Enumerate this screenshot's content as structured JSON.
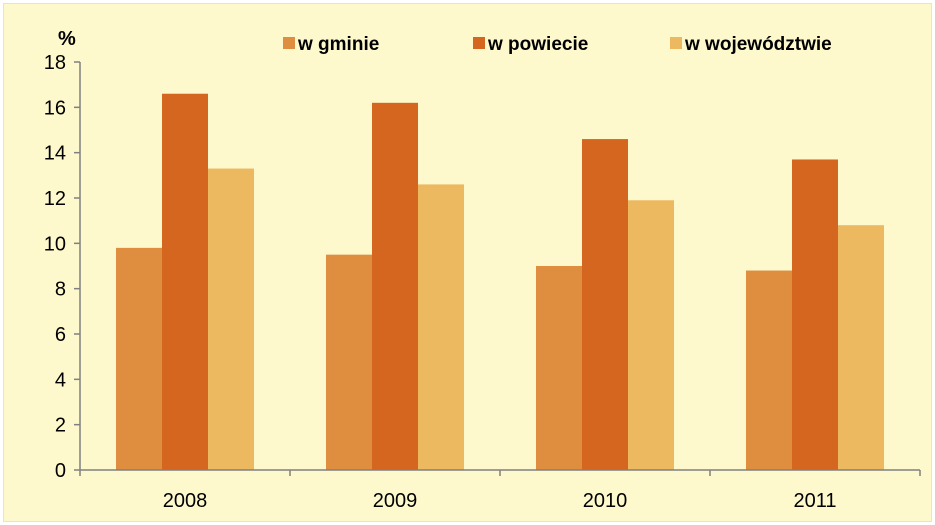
{
  "chart_data": {
    "type": "bar",
    "unit_label": "%",
    "categories": [
      "2008",
      "2009",
      "2010",
      "2011"
    ],
    "series": [
      {
        "name": "w gminie",
        "values": [
          9.8,
          9.5,
          9.0,
          8.8
        ],
        "color": "#df8d3e"
      },
      {
        "name": "w powiecie",
        "values": [
          16.6,
          16.2,
          14.6,
          13.7
        ],
        "color": "#d4661f"
      },
      {
        "name": "w województwie",
        "values": [
          13.3,
          12.6,
          11.9,
          10.8
        ],
        "color": "#edb960"
      }
    ],
    "ylim": [
      0,
      18
    ],
    "yticks": [
      "0",
      "2",
      "4",
      "6",
      "8",
      "10",
      "12",
      "14",
      "16",
      "18"
    ],
    "grid": false,
    "legend_position": "top"
  },
  "colors": {
    "background": "#fdf9cc",
    "axis": "#808080"
  }
}
